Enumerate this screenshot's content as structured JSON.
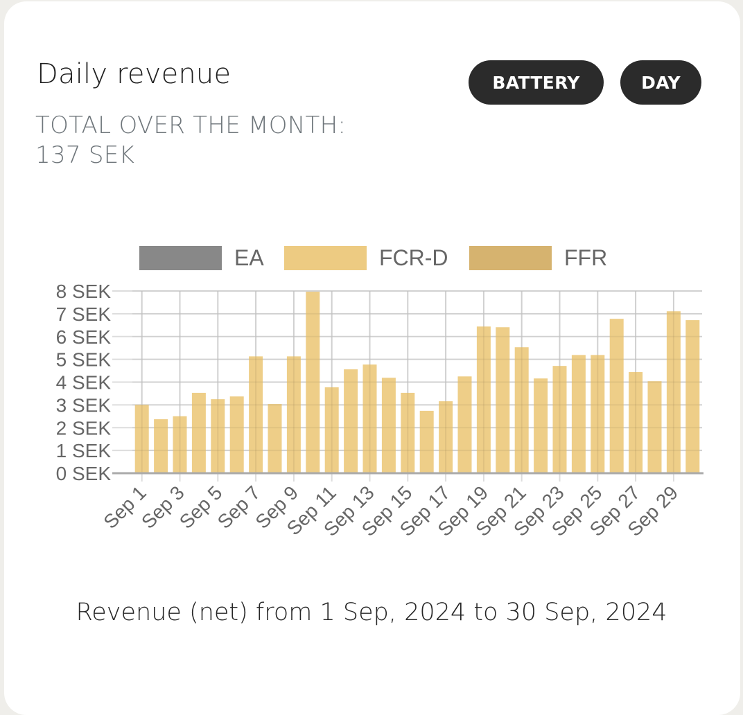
{
  "header": {
    "title": "Daily revenue",
    "total_label": "TOTAL OVER THE MONTH:",
    "total_value": "137 SEK"
  },
  "buttons": {
    "battery": "BATTERY",
    "day": "DAY"
  },
  "footer": {
    "caption": "Revenue (net) from 1 Sep, 2024 to 30 Sep, 2024"
  },
  "colors": {
    "ea": "#888888",
    "fcr_d": "#edcb82",
    "ffr": "#d6b36f",
    "button_bg": "#2b2b2b",
    "background": "#efeeea"
  },
  "chart_data": {
    "type": "bar",
    "stacked": true,
    "title": "Daily revenue",
    "xlabel": "",
    "ylabel": "",
    "ylim": [
      0,
      8
    ],
    "y_ticks": [
      "0 SEK",
      "1 SEK",
      "2 SEK",
      "3 SEK",
      "4 SEK",
      "5 SEK",
      "6 SEK",
      "7 SEK",
      "8 SEK"
    ],
    "grid": true,
    "legend_position": "top",
    "legend": [
      {
        "name": "EA",
        "color": "#888888"
      },
      {
        "name": "FCR-D",
        "color": "#edcb82"
      },
      {
        "name": "FFR",
        "color": "#d6b36f"
      }
    ],
    "categories": [
      "Sep 1",
      "Sep 2",
      "Sep 3",
      "Sep 4",
      "Sep 5",
      "Sep 6",
      "Sep 7",
      "Sep 8",
      "Sep 9",
      "Sep 10",
      "Sep 11",
      "Sep 12",
      "Sep 13",
      "Sep 14",
      "Sep 15",
      "Sep 16",
      "Sep 17",
      "Sep 18",
      "Sep 19",
      "Sep 20",
      "Sep 21",
      "Sep 22",
      "Sep 23",
      "Sep 24",
      "Sep 25",
      "Sep 26",
      "Sep 27",
      "Sep 28",
      "Sep 29",
      "Sep 30"
    ],
    "x_tick_labels": [
      "Sep 1",
      "Sep 3",
      "Sep 5",
      "Sep 7",
      "Sep 9",
      "Sep 11",
      "Sep 13",
      "Sep 15",
      "Sep 17",
      "Sep 19",
      "Sep 21",
      "Sep 23",
      "Sep 25",
      "Sep 27",
      "Sep 29"
    ],
    "series": [
      {
        "name": "EA",
        "values": [
          0,
          0,
          0,
          0,
          0,
          0,
          0,
          0,
          0,
          0,
          0,
          0,
          0,
          0,
          0,
          0,
          0,
          0,
          0,
          0,
          0,
          0,
          0,
          0,
          0,
          0,
          0,
          0,
          0,
          0
        ]
      },
      {
        "name": "FCR-D",
        "values": [
          3.0,
          2.37,
          2.5,
          3.53,
          3.25,
          3.37,
          5.13,
          3.04,
          5.13,
          7.97,
          3.77,
          4.56,
          4.77,
          4.19,
          3.53,
          2.74,
          3.16,
          4.25,
          6.44,
          6.41,
          5.53,
          4.16,
          4.71,
          5.19,
          5.19,
          6.78,
          4.44,
          4.04,
          7.11,
          6.72
        ]
      },
      {
        "name": "FFR",
        "values": [
          0,
          0,
          0,
          0,
          0,
          0,
          0,
          0,
          0,
          0,
          0,
          0,
          0,
          0,
          0,
          0,
          0,
          0,
          0,
          0,
          0,
          0,
          0,
          0,
          0,
          0,
          0,
          0,
          0,
          0
        ]
      }
    ]
  }
}
